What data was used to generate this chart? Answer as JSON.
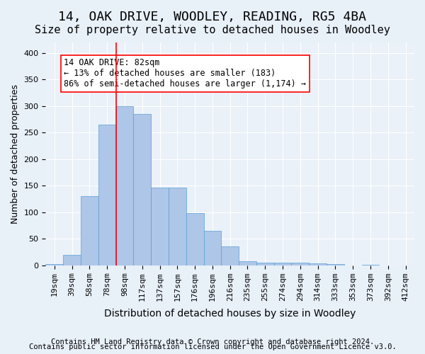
{
  "title": "14, OAK DRIVE, WOODLEY, READING, RG5 4BA",
  "subtitle": "Size of property relative to detached houses in Woodley",
  "xlabel": "Distribution of detached houses by size in Woodley",
  "ylabel": "Number of detached properties",
  "categories": [
    "19sqm",
    "39sqm",
    "58sqm",
    "78sqm",
    "98sqm",
    "117sqm",
    "137sqm",
    "157sqm",
    "176sqm",
    "196sqm",
    "216sqm",
    "235sqm",
    "255sqm",
    "274sqm",
    "294sqm",
    "314sqm",
    "333sqm",
    "353sqm",
    "373sqm",
    "392sqm",
    "412sqm"
  ],
  "values": [
    2,
    20,
    130,
    265,
    300,
    285,
    147,
    147,
    98,
    65,
    35,
    8,
    5,
    5,
    5,
    3,
    2,
    0,
    1,
    0,
    0
  ],
  "bar_color": "#aec6e8",
  "bar_edge_color": "#5a9fd4",
  "bar_width": 1.0,
  "vline_x": 3.5,
  "vline_color": "red",
  "annotation_text": "14 OAK DRIVE: 82sqm\n← 13% of detached houses are smaller (183)\n86% of semi-detached houses are larger (1,174) →",
  "annotation_box_color": "white",
  "annotation_box_edgecolor": "red",
  "ylim": [
    0,
    420
  ],
  "yticks": [
    0,
    50,
    100,
    150,
    200,
    250,
    300,
    350,
    400
  ],
  "footer_line1": "Contains HM Land Registry data © Crown copyright and database right 2024.",
  "footer_line2": "Contains public sector information licensed under the Open Government Licence v3.0.",
  "bg_color": "#e8f0f8",
  "plot_bg_color": "#eaf1f8",
  "title_fontsize": 13,
  "subtitle_fontsize": 11,
  "xlabel_fontsize": 10,
  "ylabel_fontsize": 9,
  "tick_fontsize": 8,
  "footer_fontsize": 7.5
}
